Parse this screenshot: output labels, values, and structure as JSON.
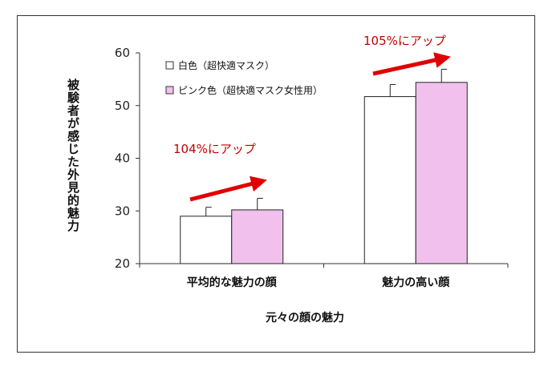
{
  "chart_data": {
    "type": "bar",
    "ylabel": "被験者が感じた外見的魅力",
    "xlabel": "元々の顔の魅力",
    "ylim": [
      20,
      60
    ],
    "yticks": [
      20,
      30,
      40,
      50,
      60
    ],
    "categories": [
      "平均的な魅力の顔",
      "魅力の高い顔"
    ],
    "series": [
      {
        "name": "白色（超快適マスク）",
        "values": [
          29.0,
          51.7
        ],
        "errors": [
          1.7,
          2.3
        ],
        "color": "#ffffff"
      },
      {
        "name": "ピンク色（超快適マスク女性用）",
        "values": [
          30.2,
          54.4
        ],
        "errors": [
          2.2,
          2.5
        ],
        "color": "#f2c0ec"
      }
    ],
    "annotations": [
      "104%にアップ",
      "105%にアップ"
    ],
    "legend_position": "top-left",
    "colors": {
      "arrow": "#e00000",
      "annotation_text": "#c00000",
      "axis": "#333333"
    }
  }
}
